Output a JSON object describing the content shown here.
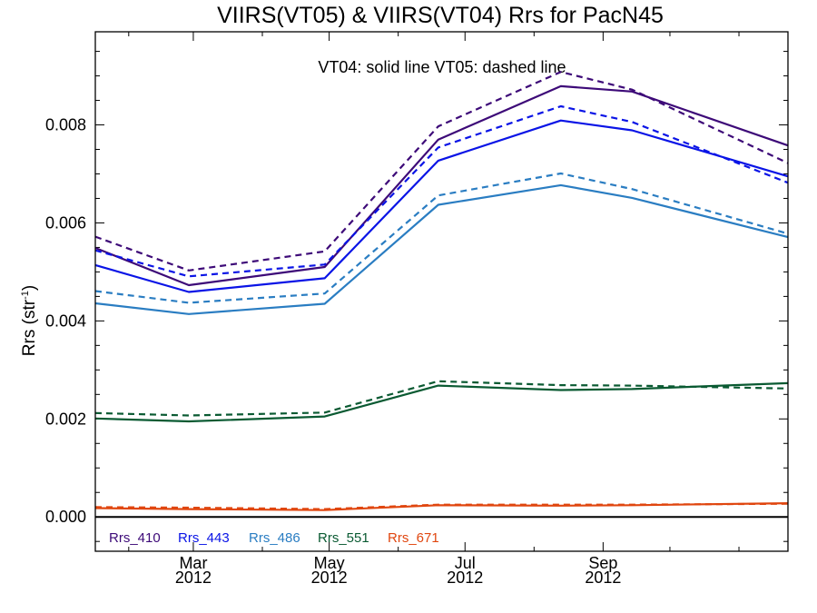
{
  "chart_data": {
    "type": "line",
    "title": "VIIRS(VT05) & VIIRS(VT04)  Rrs for PacN45",
    "annotation": "VT04: solid line   VT05: dashed line",
    "ylabel": "Rrs (str",
    "ylabel_superscript": "-1",
    "ylabel_suffix": ")",
    "xlim": [
      "2012-01-17",
      "2012-11-23"
    ],
    "ylim": [
      -0.0007,
      0.0099
    ],
    "x_ticks": [
      {
        "date": "2012-03-01",
        "month": "Mar",
        "year": "2012"
      },
      {
        "date": "2012-05-01",
        "month": "May",
        "year": "2012"
      },
      {
        "date": "2012-07-01",
        "month": "Jul",
        "year": "2012"
      },
      {
        "date": "2012-09-01",
        "month": "Sep",
        "year": "2012"
      }
    ],
    "y_ticks": [
      {
        "value": 0.0,
        "label": "0.000"
      },
      {
        "value": 0.002,
        "label": "0.002"
      },
      {
        "value": 0.004,
        "label": "0.004"
      },
      {
        "value": 0.006,
        "label": "0.006"
      },
      {
        "value": 0.008,
        "label": "0.008"
      }
    ],
    "zero_line": true,
    "legend_placement": "bottom-left",
    "x": [
      "2012-01-17",
      "2012-02-28",
      "2012-04-29",
      "2012-06-19",
      "2012-08-13",
      "2012-09-14",
      "2012-11-23"
    ],
    "series": [
      {
        "name": "Rrs_410",
        "color": "#3d0a78",
        "style": "solid",
        "values": [
          0.00549,
          0.00473,
          0.0051,
          0.0077,
          0.00879,
          0.00868,
          0.00758
        ]
      },
      {
        "name": "Rrs_410",
        "color": "#3d0a78",
        "style": "dashed",
        "values": [
          0.00572,
          0.00503,
          0.00542,
          0.00797,
          0.00908,
          0.00872,
          0.00722
        ]
      },
      {
        "name": "Rrs_443",
        "color": "#0a14e6",
        "style": "solid",
        "values": [
          0.00514,
          0.00459,
          0.00487,
          0.00727,
          0.00809,
          0.00789,
          0.00695
        ]
      },
      {
        "name": "Rrs_443",
        "color": "#0a14e6",
        "style": "dashed",
        "values": [
          0.00544,
          0.00491,
          0.00515,
          0.00754,
          0.00838,
          0.00806,
          0.00682
        ]
      },
      {
        "name": "Rrs_486",
        "color": "#2a7dc2",
        "style": "solid",
        "values": [
          0.00436,
          0.00414,
          0.00435,
          0.00637,
          0.00677,
          0.00651,
          0.00571
        ]
      },
      {
        "name": "Rrs_486",
        "color": "#2a7dc2",
        "style": "dashed",
        "values": [
          0.00461,
          0.00437,
          0.00456,
          0.00656,
          0.00701,
          0.00669,
          0.00578
        ]
      },
      {
        "name": "Rrs_551",
        "color": "#0a5a32",
        "style": "solid",
        "values": [
          0.00201,
          0.00195,
          0.00205,
          0.00268,
          0.00259,
          0.00261,
          0.00273
        ]
      },
      {
        "name": "Rrs_551",
        "color": "#0a5a32",
        "style": "dashed",
        "values": [
          0.00212,
          0.00207,
          0.00213,
          0.00277,
          0.00269,
          0.00268,
          0.00262
        ]
      },
      {
        "name": "Rrs_671",
        "color": "#e0460f",
        "style": "solid",
        "values": [
          0.00018,
          0.00016,
          0.00014,
          0.00024,
          0.00023,
          0.00024,
          0.00028
        ]
      },
      {
        "name": "Rrs_671",
        "color": "#e0460f",
        "style": "dashed",
        "values": [
          0.0002,
          0.00019,
          0.00016,
          0.00025,
          0.00025,
          0.00025,
          0.00027
        ]
      }
    ],
    "legend": [
      {
        "label": "Rrs_410",
        "color": "#3d0a78"
      },
      {
        "label": "Rrs_443",
        "color": "#0a14e6"
      },
      {
        "label": "Rrs_486",
        "color": "#2a7dc2"
      },
      {
        "label": "Rrs_551",
        "color": "#0a5a32"
      },
      {
        "label": "Rrs_671",
        "color": "#e0460f"
      }
    ]
  }
}
